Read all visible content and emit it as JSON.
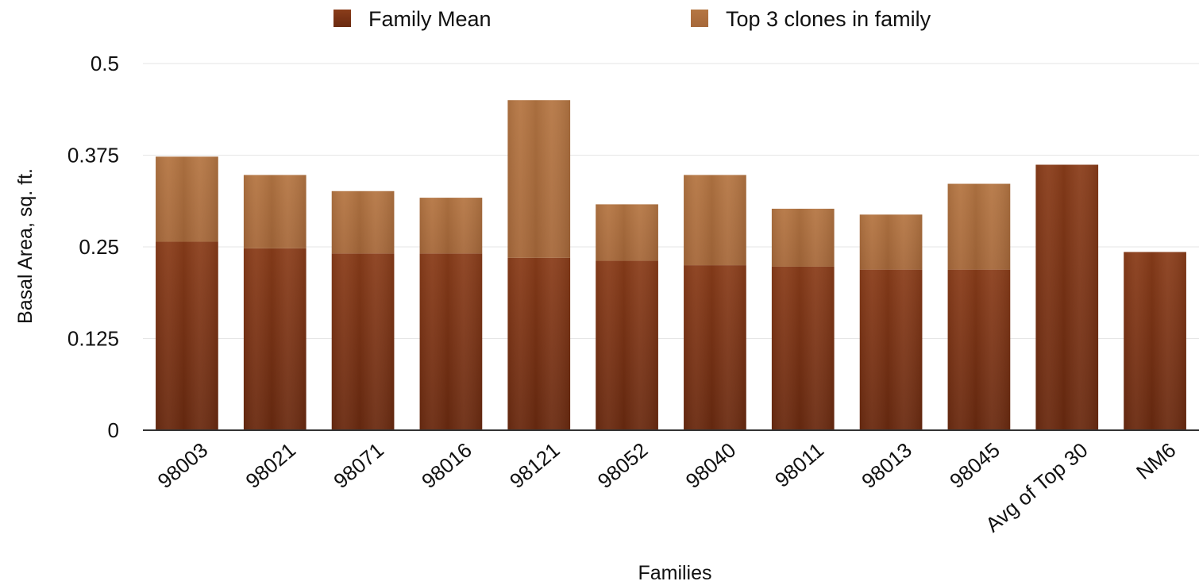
{
  "chart_data": {
    "type": "bar",
    "stacked": true,
    "title": "",
    "xlabel": "Families",
    "ylabel": "Basal Area, sq. ft.",
    "ylim": [
      0,
      0.5
    ],
    "yticks": [
      "0",
      "0.125",
      "0.25",
      "0.375",
      "0.5"
    ],
    "grid": true,
    "legend_position": "top",
    "categories": [
      "98003",
      "98021",
      "98071",
      "98016",
      "98121",
      "98052",
      "98040",
      "98011",
      "98013",
      "98045",
      "Avg of Top 30",
      "NM6"
    ],
    "series": [
      {
        "name": "Family Mean",
        "color": "#7a3416",
        "values": [
          0.257,
          0.248,
          0.241,
          0.241,
          0.235,
          0.231,
          0.225,
          0.223,
          0.219,
          0.219,
          0.362,
          0.243
        ]
      },
      {
        "name": "Top 3 clones in family",
        "color": "#b87a47",
        "values": [
          0.116,
          0.1,
          0.085,
          0.076,
          0.215,
          0.077,
          0.123,
          0.079,
          0.075,
          0.117,
          0,
          0
        ]
      }
    ]
  }
}
